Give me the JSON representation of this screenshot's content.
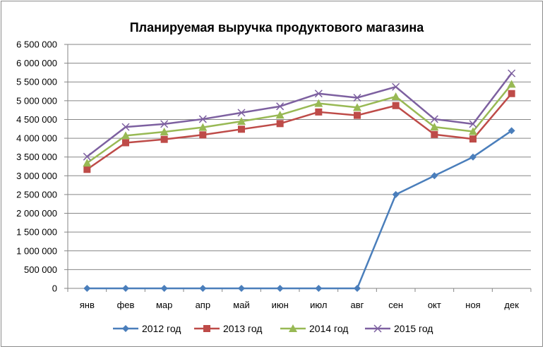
{
  "chart_data": {
    "type": "line",
    "title": "Планируемая выручка продуктового магазина",
    "xlabel": "",
    "ylabel": "",
    "categories": [
      "янв",
      "фев",
      "мар",
      "апр",
      "май",
      "июн",
      "июл",
      "авг",
      "сен",
      "окт",
      "ноя",
      "дек"
    ],
    "ylim": [
      0,
      6500000
    ],
    "yticks": [
      0,
      500000,
      1000000,
      1500000,
      2000000,
      2500000,
      3000000,
      3500000,
      4000000,
      4500000,
      5000000,
      5500000,
      6000000,
      6500000
    ],
    "ytick_labels": [
      "0",
      "500 000",
      "1 000 000",
      "1 500 000",
      "2 000 000",
      "2 500 000",
      "3 000 000",
      "3 500 000",
      "4 000 000",
      "4 500 000",
      "5 000 000",
      "5 500 000",
      "6 000 000",
      "6 500 000"
    ],
    "grid": true,
    "legend_position": "bottom",
    "series": [
      {
        "name": "2012 год",
        "color": "#4a7ebb",
        "marker": "diamond",
        "values": [
          0,
          0,
          0,
          0,
          0,
          0,
          0,
          0,
          2500000,
          3000000,
          3500000,
          4200000
        ]
      },
      {
        "name": "2013 год",
        "color": "#be4b48",
        "marker": "square",
        "values": [
          3170000,
          3880000,
          3970000,
          4090000,
          4240000,
          4390000,
          4700000,
          4610000,
          4870000,
          4100000,
          3980000,
          5190000
        ]
      },
      {
        "name": "2014 год",
        "color": "#98b954",
        "marker": "triangle",
        "values": [
          3340000,
          4070000,
          4170000,
          4290000,
          4450000,
          4620000,
          4930000,
          4820000,
          5110000,
          4300000,
          4180000,
          5440000
        ]
      },
      {
        "name": "2015 год",
        "color": "#7d60a0",
        "marker": "x",
        "values": [
          3510000,
          4300000,
          4380000,
          4510000,
          4680000,
          4850000,
          5190000,
          5080000,
          5370000,
          4510000,
          4380000,
          5730000
        ]
      }
    ]
  }
}
